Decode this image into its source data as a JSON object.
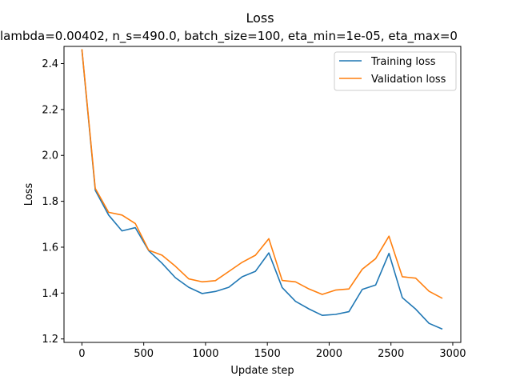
{
  "chart_data": {
    "type": "line",
    "title": "Loss",
    "subtitle": "lambda=0.00402, n_s=490.0, batch_size=100, eta_min=1e-05, eta_max=0",
    "xlabel": "Update step",
    "ylabel": "Loss",
    "xlim": [
      -145,
      3065
    ],
    "ylim": [
      1.185,
      2.475
    ],
    "xticks": [
      0,
      500,
      1000,
      1500,
      2000,
      2500,
      3000
    ],
    "yticks": [
      1.2,
      1.4,
      1.6,
      1.8,
      2.0,
      2.2,
      2.4
    ],
    "xtick_labels": [
      "0",
      "500",
      "1000",
      "1500",
      "2000",
      "2500",
      "3000"
    ],
    "ytick_labels": [
      "1.2",
      "1.4",
      "1.6",
      "1.8",
      "2.0",
      "2.2",
      "2.4"
    ],
    "grid": false,
    "legend_position": "top-right",
    "x": [
      0,
      108,
      216,
      324,
      432,
      540,
      648,
      756,
      864,
      972,
      1080,
      1188,
      1296,
      1404,
      1512,
      1620,
      1728,
      1836,
      1944,
      2052,
      2160,
      2268,
      2376,
      2484,
      2592,
      2700,
      2808,
      2916
    ],
    "series": [
      {
        "name": "Training loss",
        "color": "#1f77b4",
        "values": [
          2.46,
          1.848,
          1.74,
          1.671,
          1.685,
          1.585,
          1.53,
          1.467,
          1.425,
          1.398,
          1.407,
          1.425,
          1.471,
          1.495,
          1.575,
          1.424,
          1.364,
          1.331,
          1.303,
          1.307,
          1.319,
          1.416,
          1.435,
          1.573,
          1.38,
          1.33,
          1.268,
          1.243
        ]
      },
      {
        "name": "Validation loss",
        "color": "#ff7f0e",
        "values": [
          2.463,
          1.856,
          1.752,
          1.74,
          1.703,
          1.587,
          1.565,
          1.517,
          1.462,
          1.449,
          1.454,
          1.494,
          1.534,
          1.565,
          1.637,
          1.455,
          1.449,
          1.418,
          1.394,
          1.413,
          1.418,
          1.504,
          1.55,
          1.648,
          1.471,
          1.465,
          1.408,
          1.377
        ]
      }
    ]
  }
}
